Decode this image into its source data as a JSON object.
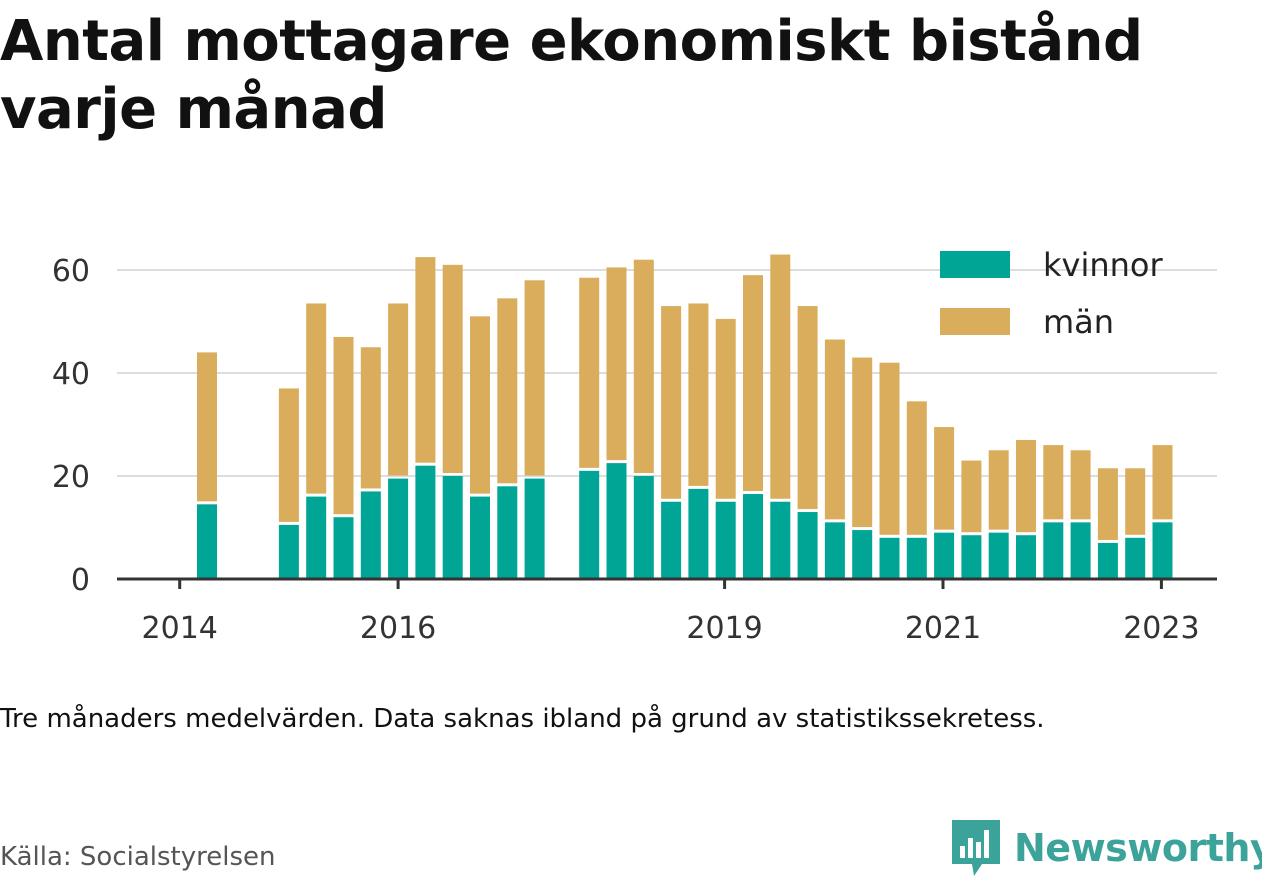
{
  "title": "Antal mottagare ekonomiskt bistånd varje månad",
  "note": "Tre månaders medelvärden. Data saknas ibland på grund av statistikssekretess.",
  "source": "Källa: Socialstyrelsen",
  "brand": {
    "name": "Newsworthy",
    "icon": "newsworthy-logo-icon",
    "color": "#3ca39a"
  },
  "colors": {
    "kvinnor": "#00a596",
    "man": "#d9ad5b",
    "grid": "#dddddd",
    "axis": "#333333"
  },
  "chart_data": {
    "type": "bar",
    "stacked": true,
    "x_ticks": [
      "2014",
      "2016",
      "2019",
      "2021",
      "2023"
    ],
    "y_ticks": [
      0,
      20,
      40,
      60
    ],
    "ylim": [
      0,
      65
    ],
    "grid": true,
    "legend_position": "top-right",
    "series": [
      {
        "name": "kvinnor",
        "color": "#00a596",
        "values": [
          14.5,
          10.5,
          16,
          12,
          17,
          19.5,
          22,
          20,
          16,
          18,
          19.5,
          21,
          22.5,
          20,
          15,
          17.5,
          15,
          16.5,
          15,
          13,
          11,
          9.5,
          8,
          8,
          9,
          8.5,
          9,
          8.5,
          11,
          11,
          7,
          8,
          11
        ]
      },
      {
        "name": "män",
        "color": "#d9ad5b",
        "values": [
          29.5,
          26.5,
          37.5,
          35,
          28,
          34,
          40.5,
          41,
          35,
          36.5,
          38.5,
          37.5,
          38,
          42,
          38,
          36,
          35.5,
          42.5,
          48,
          40,
          35.5,
          33.5,
          34,
          26.5,
          20.5,
          14.5,
          16,
          18.5,
          15,
          14,
          14.5,
          13.5,
          15
        ]
      }
    ],
    "x": [
      2014.25,
      2015.0,
      2015.25,
      2015.5,
      2015.75,
      2016.0,
      2016.25,
      2016.5,
      2016.75,
      2017.0,
      2017.25,
      2017.75,
      2018.0,
      2018.25,
      2018.5,
      2018.75,
      2019.0,
      2019.25,
      2019.5,
      2019.75,
      2020.0,
      2020.25,
      2020.5,
      2020.75,
      2021.0,
      2021.25,
      2021.5,
      2021.75,
      2022.0,
      2022.25,
      2022.5,
      2022.75,
      2023.0
    ]
  }
}
